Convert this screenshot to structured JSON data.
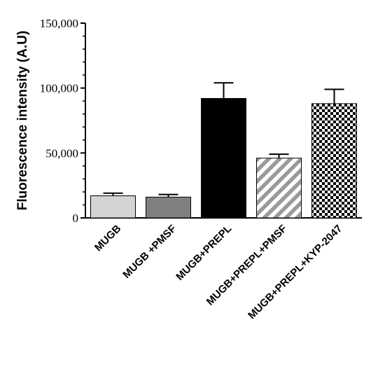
{
  "chart_data": {
    "type": "bar",
    "title": "",
    "xlabel": "",
    "ylabel": "Fluorescence intensity (A.U)",
    "categories": [
      "MUGB",
      "MUGB +PMSF",
      "MUGB+PREPL",
      "MUGB+PREPL+PMSF",
      "MUGB+PREPL+KYP-2047"
    ],
    "values": [
      17000,
      16000,
      92000,
      46000,
      88000
    ],
    "errors": [
      2000,
      2000,
      12000,
      3000,
      11000
    ],
    "ylim": [
      0,
      150000
    ],
    "yticks": [
      0,
      50000,
      100000,
      150000
    ],
    "ytick_labels": [
      "0",
      "50,000",
      "100,000",
      "150,000"
    ],
    "grid": false,
    "bar_fills": [
      "solid-light-gray",
      "solid-dark-gray",
      "solid-black",
      "diagonal-stripes-gray",
      "checkerboard-black"
    ],
    "colors": {
      "light_gray": "#d4d4d4",
      "dark_gray": "#808080",
      "black": "#000000",
      "stripe_gray": "#9a9a9a"
    }
  }
}
